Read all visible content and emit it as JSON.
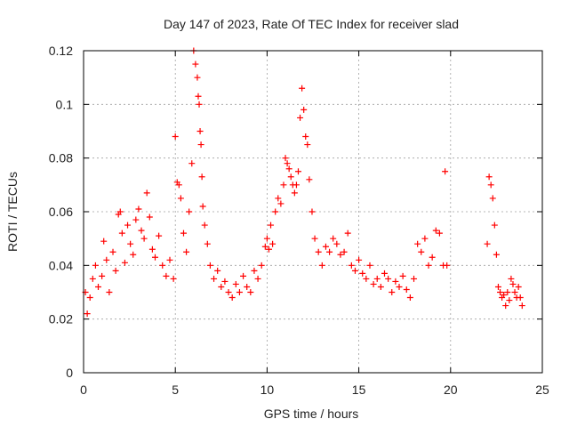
{
  "chart_data": {
    "type": "scatter",
    "title": "Day 147 of 2023, Rate Of TEC Index for receiver slad",
    "xlabel": "GPS time / hours",
    "ylabel": "ROTI / TECUs",
    "xlim": [
      0,
      25
    ],
    "ylim": [
      0,
      0.12
    ],
    "xticks": [
      0,
      5,
      10,
      15,
      20,
      25
    ],
    "yticks": [
      0,
      0.02,
      0.04,
      0.06,
      0.08,
      0.1,
      0.12
    ],
    "xtick_labels": [
      "0",
      "5",
      "10",
      "15",
      "20",
      "25"
    ],
    "ytick_labels": [
      "0",
      "0.02",
      "0.04",
      "0.06",
      "0.08",
      "0.1",
      "0.12"
    ],
    "grid": true,
    "marker": "+",
    "color": "#ff0000",
    "series": [
      {
        "name": "ROTI",
        "x": [
          0.1,
          0.2,
          0.35,
          0.5,
          0.65,
          0.8,
          1.0,
          1.1,
          1.25,
          1.4,
          1.6,
          1.75,
          1.9,
          2.0,
          2.1,
          2.25,
          2.4,
          2.55,
          2.7,
          2.85,
          3.0,
          3.15,
          3.3,
          3.45,
          3.6,
          3.75,
          3.9,
          4.1,
          4.3,
          4.5,
          4.7,
          4.9,
          5.0,
          5.1,
          5.2,
          5.3,
          5.45,
          5.6,
          5.75,
          5.9,
          6.0,
          6.1,
          6.2,
          6.25,
          6.3,
          6.35,
          6.4,
          6.45,
          6.5,
          6.6,
          6.75,
          6.9,
          7.1,
          7.3,
          7.5,
          7.7,
          7.9,
          8.1,
          8.3,
          8.5,
          8.7,
          8.9,
          9.1,
          9.3,
          9.5,
          9.7,
          9.9,
          10.0,
          10.1,
          10.2,
          10.3,
          10.45,
          10.6,
          10.75,
          10.9,
          11.0,
          11.1,
          11.2,
          11.3,
          11.4,
          11.5,
          11.6,
          11.7,
          11.8,
          11.9,
          12.0,
          12.1,
          12.2,
          12.3,
          12.45,
          12.6,
          12.8,
          13.0,
          13.2,
          13.4,
          13.6,
          13.8,
          14.0,
          14.2,
          14.4,
          14.6,
          14.8,
          15.0,
          15.2,
          15.4,
          15.6,
          15.8,
          16.0,
          16.2,
          16.4,
          16.6,
          16.8,
          17.0,
          17.2,
          17.4,
          17.6,
          17.8,
          18.0,
          18.2,
          18.4,
          18.6,
          18.8,
          19.0,
          19.2,
          19.4,
          19.6,
          19.7,
          19.8,
          22.0,
          22.1,
          22.2,
          22.3,
          22.4,
          22.5,
          22.6,
          22.7,
          22.8,
          22.9,
          23.0,
          23.1,
          23.2,
          23.3,
          23.4,
          23.5,
          23.6,
          23.7,
          23.8,
          23.9
        ],
        "y": [
          0.03,
          0.022,
          0.028,
          0.035,
          0.04,
          0.032,
          0.036,
          0.049,
          0.042,
          0.03,
          0.045,
          0.038,
          0.059,
          0.06,
          0.052,
          0.041,
          0.055,
          0.048,
          0.044,
          0.057,
          0.061,
          0.053,
          0.05,
          0.067,
          0.058,
          0.046,
          0.043,
          0.051,
          0.04,
          0.036,
          0.042,
          0.035,
          0.088,
          0.071,
          0.07,
          0.065,
          0.052,
          0.045,
          0.06,
          0.078,
          0.12,
          0.115,
          0.11,
          0.103,
          0.1,
          0.09,
          0.085,
          0.073,
          0.062,
          0.055,
          0.048,
          0.04,
          0.035,
          0.038,
          0.032,
          0.034,
          0.03,
          0.028,
          0.033,
          0.03,
          0.036,
          0.032,
          0.03,
          0.038,
          0.035,
          0.04,
          0.047,
          0.05,
          0.046,
          0.055,
          0.048,
          0.06,
          0.065,
          0.063,
          0.07,
          0.08,
          0.078,
          0.076,
          0.073,
          0.07,
          0.067,
          0.07,
          0.075,
          0.095,
          0.106,
          0.098,
          0.088,
          0.085,
          0.072,
          0.06,
          0.05,
          0.045,
          0.04,
          0.047,
          0.045,
          0.05,
          0.048,
          0.044,
          0.045,
          0.052,
          0.04,
          0.038,
          0.042,
          0.037,
          0.035,
          0.04,
          0.033,
          0.035,
          0.032,
          0.037,
          0.035,
          0.03,
          0.034,
          0.032,
          0.036,
          0.031,
          0.028,
          0.035,
          0.048,
          0.045,
          0.05,
          0.04,
          0.043,
          0.053,
          0.052,
          0.04,
          0.075,
          0.04,
          0.048,
          0.073,
          0.07,
          0.065,
          0.055,
          0.044,
          0.032,
          0.03,
          0.028,
          0.029,
          0.025,
          0.03,
          0.027,
          0.035,
          0.033,
          0.03,
          0.028,
          0.032,
          0.028,
          0.025
        ]
      }
    ]
  }
}
